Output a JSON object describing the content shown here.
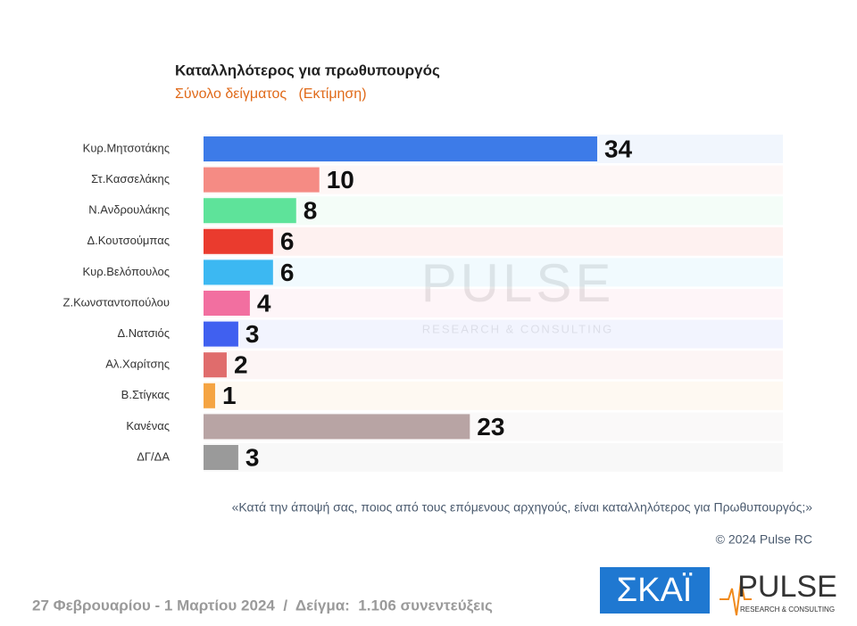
{
  "chart_data": {
    "type": "barh",
    "title": "Καταλληλότερος για πρωθυπουργός",
    "subtitle": "Σύνολο δείγματος   (Εκτίμηση)",
    "categories": [
      "Κυρ.Μητσοτάκης",
      "Στ.Κασσελάκης",
      "Ν.Ανδρουλάκης",
      "Δ.Κουτσούμπας",
      "Κυρ.Βελόπουλος",
      "Ζ.Κωνσταντοπούλου",
      "Δ.Νατσιός",
      "Αλ.Χαρίτσης",
      "Β.Στίγκας",
      "Κανένας",
      "ΔΓ/ΔΑ"
    ],
    "values": [
      34,
      10,
      8,
      6,
      6,
      4,
      3,
      2,
      1,
      23,
      3
    ],
    "colors": [
      "#3d7be8",
      "#f58b84",
      "#5ee39a",
      "#ea3b2e",
      "#3cb8f2",
      "#f26fa0",
      "#4060f0",
      "#e06c6c",
      "#f5a442",
      "#b8a4a4",
      "#9a9a9a"
    ],
    "question": "«Κατά την άποψή σας, ποιος από τους επόμενους αρχηγούς, είναι καταλληλότερος για Πρωθυπουργός;»",
    "copyright": "© 2024 Pulse RC",
    "footer": "27 Φεβρουαρίου - 1 Μαρτίου 2024  /  Δείγμα:  1.106 συνεντεύξεις",
    "logo_skai": "ΣΚΑΪ",
    "logo_pulse": "PULSE",
    "logo_pulse_sub": "RESEARCH & CONSULTING"
  }
}
